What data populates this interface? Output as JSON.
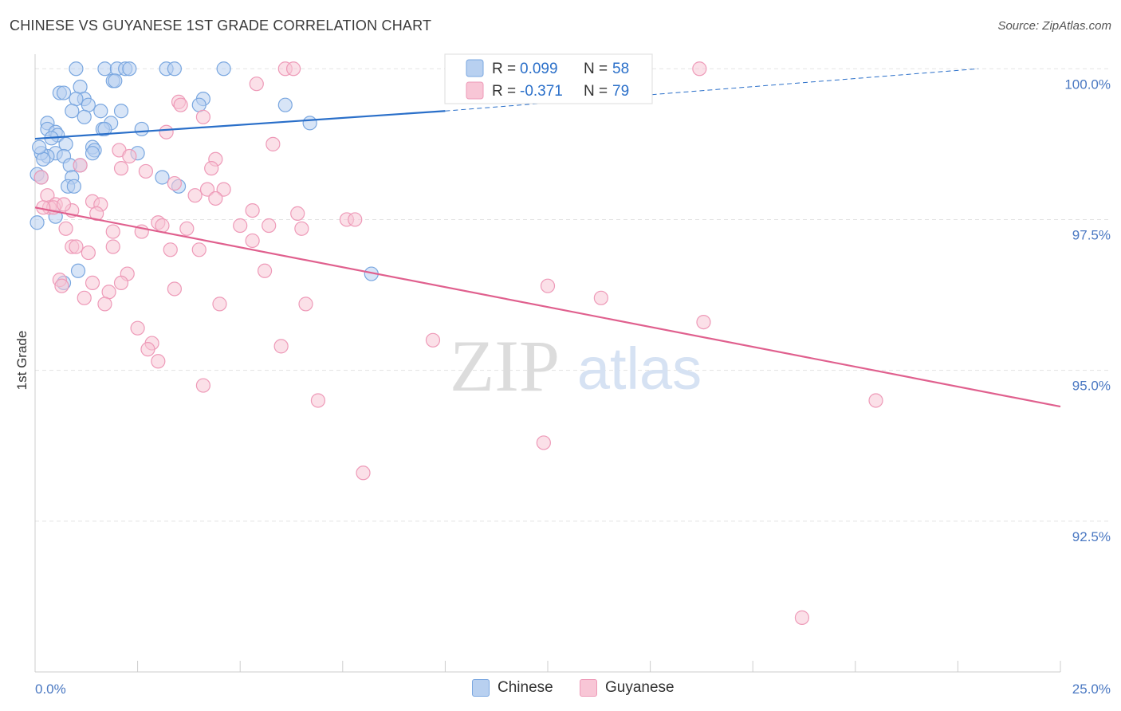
{
  "chart_data": {
    "type": "scatter",
    "title": "CHINESE VS GUYANESE 1ST GRADE CORRELATION CHART",
    "source": "Source: ZipAtlas.com",
    "xlabel": "",
    "ylabel": "1st Grade",
    "xlim": [
      0,
      25
    ],
    "ylim": [
      90,
      100.4
    ],
    "x_tick_labels": [
      "0.0%",
      "25.0%"
    ],
    "y_ticks": [
      {
        "value": 100,
        "label": "100.0%"
      },
      {
        "value": 97.5,
        "label": "97.5%"
      },
      {
        "value": 95,
        "label": "95.0%"
      },
      {
        "value": 92.5,
        "label": "92.5%"
      }
    ],
    "watermark": {
      "part1": "ZIP",
      "part2": "atlas"
    },
    "legend": {
      "entries": [
        {
          "r_label": "R =",
          "r_value": "0.099",
          "n_label": "N =",
          "n_value": "58"
        },
        {
          "r_label": "R =",
          "r_value": "-0.371",
          "n_label": "N =",
          "n_value": "79"
        }
      ]
    },
    "series": [
      {
        "name": "Chinese",
        "color": "#7aa7e0",
        "fill": "#b8d0f0",
        "line_color": "#2a6fc9",
        "trend": {
          "x0": 0,
          "y0": 98.84,
          "x1": 10,
          "y1": 99.3,
          "dash_x1": 23,
          "dash_y1": 100.0
        },
        "points": [
          [
            1.0,
            100.0
          ],
          [
            1.7,
            100.0
          ],
          [
            2.0,
            100.0
          ],
          [
            2.2,
            100.0
          ],
          [
            2.3,
            100.0
          ],
          [
            3.2,
            100.0
          ],
          [
            3.4,
            100.0
          ],
          [
            4.6,
            100.0
          ],
          [
            1.9,
            99.8
          ],
          [
            1.95,
            99.8
          ],
          [
            1.1,
            99.7
          ],
          [
            0.6,
            99.6
          ],
          [
            0.7,
            99.6
          ],
          [
            1.2,
            99.5
          ],
          [
            4.1,
            99.5
          ],
          [
            1.0,
            99.5
          ],
          [
            4.0,
            99.4
          ],
          [
            1.3,
            99.4
          ],
          [
            6.1,
            99.4
          ],
          [
            0.9,
            99.3
          ],
          [
            1.6,
            99.3
          ],
          [
            2.1,
            99.3
          ],
          [
            1.2,
            99.2
          ],
          [
            6.7,
            99.1
          ],
          [
            0.3,
            99.1
          ],
          [
            1.85,
            99.1
          ],
          [
            0.3,
            99.0
          ],
          [
            2.6,
            99.0
          ],
          [
            1.65,
            99.0
          ],
          [
            1.7,
            99.0
          ],
          [
            0.5,
            98.95
          ],
          [
            0.55,
            98.9
          ],
          [
            0.4,
            98.85
          ],
          [
            0.75,
            98.75
          ],
          [
            1.4,
            98.7
          ],
          [
            1.45,
            98.65
          ],
          [
            2.5,
            98.6
          ],
          [
            1.4,
            98.6
          ],
          [
            0.5,
            98.6
          ],
          [
            0.7,
            98.55
          ],
          [
            0.3,
            98.55
          ],
          [
            0.15,
            98.6
          ],
          [
            0.2,
            98.5
          ],
          [
            1.1,
            98.4
          ],
          [
            0.85,
            98.4
          ],
          [
            0.05,
            98.25
          ],
          [
            3.1,
            98.2
          ],
          [
            0.9,
            98.2
          ],
          [
            3.5,
            98.05
          ],
          [
            0.8,
            98.05
          ],
          [
            0.95,
            98.05
          ],
          [
            0.5,
            97.55
          ],
          [
            0.05,
            97.45
          ],
          [
            1.05,
            96.65
          ],
          [
            8.2,
            96.6
          ],
          [
            0.7,
            96.45
          ],
          [
            0.1,
            98.7
          ],
          [
            0.15,
            98.2
          ]
        ]
      },
      {
        "name": "Guyanese",
        "color": "#ee9ab8",
        "fill": "#f8c6d6",
        "line_color": "#e0608e",
        "trend": {
          "x0": 0,
          "y0": 97.7,
          "x1": 25,
          "y1": 94.4
        },
        "points": [
          [
            6.1,
            100.0
          ],
          [
            6.3,
            100.0
          ],
          [
            16.2,
            100.0
          ],
          [
            5.4,
            99.75
          ],
          [
            3.5,
            99.45
          ],
          [
            3.55,
            99.4
          ],
          [
            4.1,
            99.2
          ],
          [
            3.2,
            98.95
          ],
          [
            5.8,
            98.75
          ],
          [
            2.05,
            98.65
          ],
          [
            2.3,
            98.55
          ],
          [
            4.4,
            98.5
          ],
          [
            4.3,
            98.35
          ],
          [
            2.1,
            98.35
          ],
          [
            1.1,
            98.4
          ],
          [
            2.7,
            98.3
          ],
          [
            3.4,
            98.1
          ],
          [
            0.15,
            98.2
          ],
          [
            4.2,
            98.0
          ],
          [
            4.6,
            98.0
          ],
          [
            3.9,
            97.9
          ],
          [
            0.3,
            97.9
          ],
          [
            1.4,
            97.8
          ],
          [
            4.4,
            97.85
          ],
          [
            0.5,
            97.75
          ],
          [
            1.6,
            97.75
          ],
          [
            0.35,
            97.7
          ],
          [
            0.45,
            97.7
          ],
          [
            0.2,
            97.7
          ],
          [
            0.9,
            97.65
          ],
          [
            1.5,
            97.6
          ],
          [
            5.3,
            97.65
          ],
          [
            6.4,
            97.6
          ],
          [
            7.6,
            97.5
          ],
          [
            7.8,
            97.5
          ],
          [
            3.0,
            97.45
          ],
          [
            5.0,
            97.4
          ],
          [
            5.7,
            97.4
          ],
          [
            6.5,
            97.35
          ],
          [
            3.7,
            97.35
          ],
          [
            0.75,
            97.35
          ],
          [
            3.1,
            97.4
          ],
          [
            2.6,
            97.3
          ],
          [
            1.9,
            97.3
          ],
          [
            5.3,
            97.15
          ],
          [
            0.9,
            97.05
          ],
          [
            1.0,
            97.05
          ],
          [
            1.9,
            97.05
          ],
          [
            3.3,
            97.0
          ],
          [
            4.0,
            97.0
          ],
          [
            1.3,
            96.95
          ],
          [
            5.6,
            96.65
          ],
          [
            2.25,
            96.6
          ],
          [
            0.6,
            96.5
          ],
          [
            2.1,
            96.45
          ],
          [
            1.4,
            96.45
          ],
          [
            0.65,
            96.4
          ],
          [
            12.5,
            96.4
          ],
          [
            3.4,
            96.35
          ],
          [
            1.8,
            96.3
          ],
          [
            1.2,
            96.2
          ],
          [
            13.8,
            96.2
          ],
          [
            4.5,
            96.1
          ],
          [
            6.6,
            96.1
          ],
          [
            1.7,
            96.1
          ],
          [
            16.3,
            95.8
          ],
          [
            2.5,
            95.7
          ],
          [
            9.7,
            95.5
          ],
          [
            2.85,
            95.45
          ],
          [
            2.75,
            95.35
          ],
          [
            6.0,
            95.4
          ],
          [
            3.0,
            95.15
          ],
          [
            4.1,
            94.75
          ],
          [
            6.9,
            94.5
          ],
          [
            20.5,
            94.5
          ],
          [
            12.4,
            93.8
          ],
          [
            8.0,
            93.3
          ],
          [
            18.7,
            90.9
          ],
          [
            0.7,
            97.75
          ]
        ]
      }
    ]
  }
}
